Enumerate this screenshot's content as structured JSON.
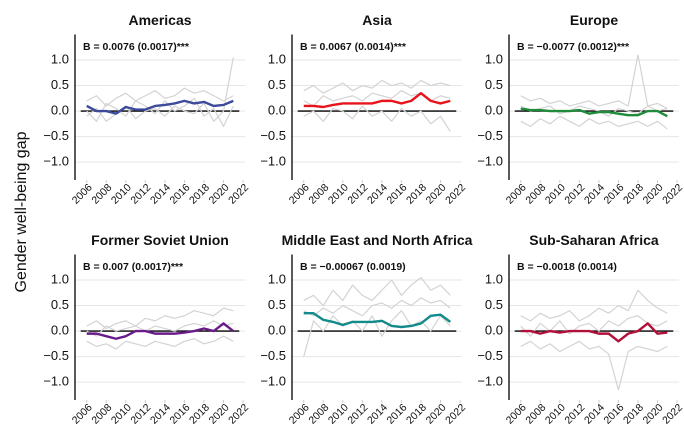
{
  "y_label": "Gender well-being gap",
  "chart_data": [
    {
      "type": "line",
      "title": "Americas",
      "annotation": "B = 0.0076 (0.0017)***",
      "x": [
        2006,
        2007,
        2008,
        2009,
        2010,
        2011,
        2012,
        2013,
        2014,
        2015,
        2016,
        2017,
        2018,
        2019,
        2020,
        2021
      ],
      "series": [
        {
          "color": "#d3d3d3",
          "values": [
            0.2,
            0.3,
            0.1,
            0.25,
            0.35,
            0.2,
            0.3,
            0.4,
            0.25,
            0.3,
            0.45,
            0.35,
            0.4,
            0.3,
            0.2,
            0.3
          ]
        },
        {
          "color": "#d3d3d3",
          "values": [
            -0.1,
            0.05,
            -0.2,
            -0.05,
            0.1,
            -0.15,
            0.0,
            0.05,
            -0.1,
            0.1,
            0.0,
            -0.05,
            0.15,
            -0.2,
            0.0,
            1.05
          ]
        },
        {
          "color": "#d3d3d3",
          "values": [
            0.0,
            -0.2,
            0.15,
            0.05,
            -0.1,
            0.2,
            0.1,
            -0.05,
            0.2,
            0.0,
            0.1,
            0.25,
            -0.1,
            0.05,
            -0.3,
            0.1
          ]
        },
        {
          "color": "#3b4a9a",
          "values": [
            0.1,
            0.0,
            0.0,
            -0.05,
            0.08,
            0.03,
            0.03,
            0.1,
            0.12,
            0.15,
            0.2,
            0.15,
            0.18,
            0.1,
            0.12,
            0.2
          ]
        }
      ],
      "xlim": [
        2004.8,
        2022.2
      ],
      "xticks": [
        2006,
        2008,
        2010,
        2012,
        2014,
        2016,
        2018,
        2020,
        2022
      ],
      "ylim": [
        -1.35,
        1.5
      ],
      "yticks": [
        {
          "value": -1,
          "label": "−1.0"
        },
        {
          "value": -0.5,
          "label": "−0.5"
        },
        {
          "value": 0,
          "label": "0.0"
        },
        0.5,
        {
          "value": 1,
          "label": "1.0"
        }
      ]
    },
    {
      "type": "line",
      "title": "Asia",
      "annotation": "B = 0.0067 (0.0014)***",
      "x": [
        2006,
        2007,
        2008,
        2009,
        2010,
        2011,
        2012,
        2013,
        2014,
        2015,
        2016,
        2017,
        2018,
        2019,
        2020,
        2021
      ],
      "series": [
        {
          "color": "#d3d3d3",
          "values": [
            0.4,
            0.5,
            0.35,
            0.45,
            0.55,
            0.4,
            0.5,
            0.45,
            0.6,
            0.5,
            0.55,
            0.45,
            0.6,
            0.5,
            0.55,
            0.5
          ]
        },
        {
          "color": "#d3d3d3",
          "values": [
            -0.1,
            0.0,
            -0.2,
            0.05,
            0.0,
            -0.15,
            0.1,
            -0.1,
            0.0,
            -0.2,
            0.05,
            -0.1,
            0.0,
            -0.25,
            -0.1,
            -0.4
          ]
        },
        {
          "color": "#d3d3d3",
          "values": [
            0.2,
            0.1,
            0.3,
            0.2,
            0.25,
            0.3,
            0.2,
            0.35,
            0.3,
            0.25,
            0.4,
            0.3,
            0.35,
            0.2,
            0.3,
            0.25
          ]
        },
        {
          "color": "#e8141c",
          "values": [
            0.1,
            0.1,
            0.08,
            0.12,
            0.15,
            0.15,
            0.15,
            0.15,
            0.2,
            0.2,
            0.15,
            0.2,
            0.35,
            0.2,
            0.15,
            0.2
          ]
        }
      ],
      "xlim": [
        2004.8,
        2022.2
      ],
      "xticks": [
        2006,
        2008,
        2010,
        2012,
        2014,
        2016,
        2018,
        2020,
        2022
      ],
      "ylim": [
        -1.35,
        1.5
      ],
      "yticks": [
        {
          "value": -1,
          "label": "−1.0"
        },
        {
          "value": -0.5,
          "label": "−0.5"
        },
        {
          "value": 0,
          "label": "0.0"
        },
        0.5,
        {
          "value": 1,
          "label": "1.0"
        }
      ]
    },
    {
      "type": "line",
      "title": "Europe",
      "annotation": "B = −0.0077 (0.0012)***",
      "x": [
        2006,
        2007,
        2008,
        2009,
        2010,
        2011,
        2012,
        2013,
        2014,
        2015,
        2016,
        2017,
        2018,
        2019,
        2020,
        2021
      ],
      "series": [
        {
          "color": "#d3d3d3",
          "values": [
            0.3,
            0.2,
            0.25,
            0.15,
            0.2,
            0.1,
            0.15,
            0.2,
            0.1,
            0.15,
            0.2,
            0.1,
            1.1,
            0.1,
            0.15,
            0.05
          ]
        },
        {
          "color": "#d3d3d3",
          "values": [
            -0.2,
            -0.3,
            -0.15,
            -0.25,
            -0.1,
            -0.2,
            -0.3,
            -0.15,
            -0.25,
            -0.2,
            -0.3,
            -0.25,
            -0.2,
            -0.3,
            -0.2,
            -0.35
          ]
        },
        {
          "color": "#d3d3d3",
          "values": [
            0.1,
            0.0,
            0.05,
            0.1,
            -0.05,
            0.0,
            0.1,
            0.05,
            0.0,
            -0.1,
            0.05,
            0.0,
            -0.05,
            0.1,
            0.0,
            0.05
          ]
        },
        {
          "color": "#1e8c3a",
          "values": [
            0.05,
            0.02,
            0.02,
            0.0,
            0.0,
            0.0,
            0.02,
            -0.05,
            -0.02,
            -0.02,
            -0.05,
            -0.08,
            -0.08,
            0.0,
            0.0,
            -0.1
          ]
        }
      ],
      "xlim": [
        2004.8,
        2022.2
      ],
      "xticks": [
        2006,
        2008,
        2010,
        2012,
        2014,
        2016,
        2018,
        2020,
        2022
      ],
      "ylim": [
        -1.35,
        1.5
      ],
      "yticks": [
        {
          "value": -1,
          "label": "−1.0"
        },
        {
          "value": -0.5,
          "label": "−0.5"
        },
        {
          "value": 0,
          "label": "0.0"
        },
        0.5,
        {
          "value": 1,
          "label": "1.0"
        }
      ]
    },
    {
      "type": "line",
      "title": "Former Soviet Union",
      "annotation": "B = 0.007 (0.0017)***",
      "x": [
        2006,
        2007,
        2008,
        2009,
        2010,
        2011,
        2012,
        2013,
        2014,
        2015,
        2016,
        2017,
        2018,
        2019,
        2020,
        2021
      ],
      "series": [
        {
          "color": "#d3d3d3",
          "values": [
            0.1,
            0.2,
            0.05,
            0.15,
            0.2,
            0.1,
            0.25,
            0.2,
            0.3,
            0.25,
            0.3,
            0.4,
            0.35,
            0.3,
            0.45,
            0.4
          ]
        },
        {
          "color": "#d3d3d3",
          "values": [
            -0.2,
            -0.3,
            -0.25,
            -0.35,
            -0.2,
            -0.25,
            -0.3,
            -0.2,
            -0.25,
            -0.3,
            -0.2,
            -0.15,
            -0.25,
            -0.2,
            -0.1,
            -0.2
          ]
        },
        {
          "color": "#d3d3d3",
          "values": [
            0.0,
            -0.1,
            0.1,
            0.0,
            0.05,
            0.1,
            0.0,
            0.1,
            0.05,
            0.0,
            0.1,
            0.15,
            0.1,
            0.2,
            0.1,
            0.15
          ]
        },
        {
          "color": "#6a1b8a",
          "values": [
            -0.05,
            -0.05,
            -0.1,
            -0.15,
            -0.1,
            0.0,
            0.0,
            -0.05,
            -0.05,
            -0.05,
            -0.03,
            0.0,
            0.05,
            0.0,
            0.15,
            0.0
          ]
        }
      ],
      "xlim": [
        2004.8,
        2022.2
      ],
      "xticks": [
        2006,
        2008,
        2010,
        2012,
        2014,
        2016,
        2018,
        2020,
        2022
      ],
      "ylim": [
        -1.35,
        1.5
      ],
      "yticks": [
        {
          "value": -1,
          "label": "−1.0"
        },
        {
          "value": -0.5,
          "label": "−0.5"
        },
        {
          "value": 0,
          "label": "0.0"
        },
        0.5,
        {
          "value": 1,
          "label": "1.0"
        }
      ]
    },
    {
      "type": "line",
      "title": "Middle East and North Africa",
      "annotation": "B = −0.00067 (0.0019)",
      "x": [
        2006,
        2007,
        2008,
        2009,
        2010,
        2011,
        2012,
        2013,
        2014,
        2015,
        2016,
        2017,
        2018,
        2019,
        2020,
        2021
      ],
      "series": [
        {
          "color": "#d3d3d3",
          "values": [
            0.6,
            0.7,
            0.5,
            0.8,
            0.6,
            0.9,
            0.7,
            0.6,
            0.8,
            1.0,
            0.7,
            0.9,
            1.05,
            0.8,
            0.9,
            0.7
          ]
        },
        {
          "color": "#d3d3d3",
          "values": [
            -0.5,
            0.2,
            0.0,
            0.3,
            0.1,
            0.2,
            0.0,
            0.3,
            -0.1,
            0.2,
            0.4,
            0.1,
            0.2,
            0.0,
            0.3,
            0.1
          ]
        },
        {
          "color": "#d3d3d3",
          "values": [
            0.4,
            0.3,
            0.45,
            0.35,
            0.5,
            0.4,
            0.3,
            0.5,
            0.55,
            0.45,
            0.6,
            0.5,
            0.65,
            0.55,
            0.6,
            0.45
          ]
        },
        {
          "color": "#128a8a",
          "values": [
            0.35,
            0.35,
            0.22,
            0.18,
            0.12,
            0.18,
            0.18,
            0.18,
            0.2,
            0.1,
            0.08,
            0.1,
            0.15,
            0.3,
            0.32,
            0.18
          ]
        }
      ],
      "xlim": [
        2004.8,
        2022.2
      ],
      "xticks": [
        2006,
        2008,
        2010,
        2012,
        2014,
        2016,
        2018,
        2020,
        2022
      ],
      "ylim": [
        -1.35,
        1.5
      ],
      "yticks": [
        {
          "value": -1,
          "label": "−1.0"
        },
        {
          "value": -0.5,
          "label": "−0.5"
        },
        {
          "value": 0,
          "label": "0.0"
        },
        0.5,
        {
          "value": 1,
          "label": "1.0"
        }
      ]
    },
    {
      "type": "line",
      "title": "Sub-Saharan Africa",
      "annotation": "B = −0.0018 (0.0014)",
      "x": [
        2006,
        2007,
        2008,
        2009,
        2010,
        2011,
        2012,
        2013,
        2014,
        2015,
        2016,
        2017,
        2018,
        2019,
        2020,
        2021
      ],
      "series": [
        {
          "color": "#d3d3d3",
          "values": [
            0.3,
            0.2,
            0.35,
            0.25,
            0.3,
            0.4,
            0.2,
            0.3,
            0.45,
            0.35,
            0.5,
            0.4,
            0.8,
            0.6,
            0.45,
            0.35
          ]
        },
        {
          "color": "#d3d3d3",
          "values": [
            -0.3,
            -0.2,
            -0.35,
            -0.25,
            -0.4,
            -0.3,
            -0.2,
            -0.35,
            -0.3,
            -0.45,
            -1.15,
            -0.4,
            -0.3,
            -0.35,
            -0.4,
            -0.3
          ]
        },
        {
          "color": "#d3d3d3",
          "values": [
            0.1,
            -0.1,
            0.15,
            0.0,
            0.2,
            -0.05,
            0.1,
            0.15,
            0.0,
            0.2,
            0.1,
            0.25,
            0.3,
            0.15,
            0.1,
            0.2
          ]
        },
        {
          "color": "#b0103a",
          "values": [
            0.0,
            0.0,
            -0.05,
            0.0,
            -0.03,
            0.0,
            0.0,
            0.0,
            -0.05,
            -0.05,
            -0.2,
            -0.05,
            0.0,
            0.15,
            -0.05,
            -0.03
          ]
        }
      ],
      "xlim": [
        2004.8,
        2022.2
      ],
      "xticks": [
        2006,
        2008,
        2010,
        2012,
        2014,
        2016,
        2018,
        2020,
        2022
      ],
      "ylim": [
        -1.35,
        1.5
      ],
      "yticks": [
        {
          "value": -1,
          "label": "−1.0"
        },
        {
          "value": -0.5,
          "label": "−0.5"
        },
        {
          "value": 0,
          "label": "0.0"
        },
        0.5,
        {
          "value": 1,
          "label": "1.0"
        }
      ]
    }
  ]
}
